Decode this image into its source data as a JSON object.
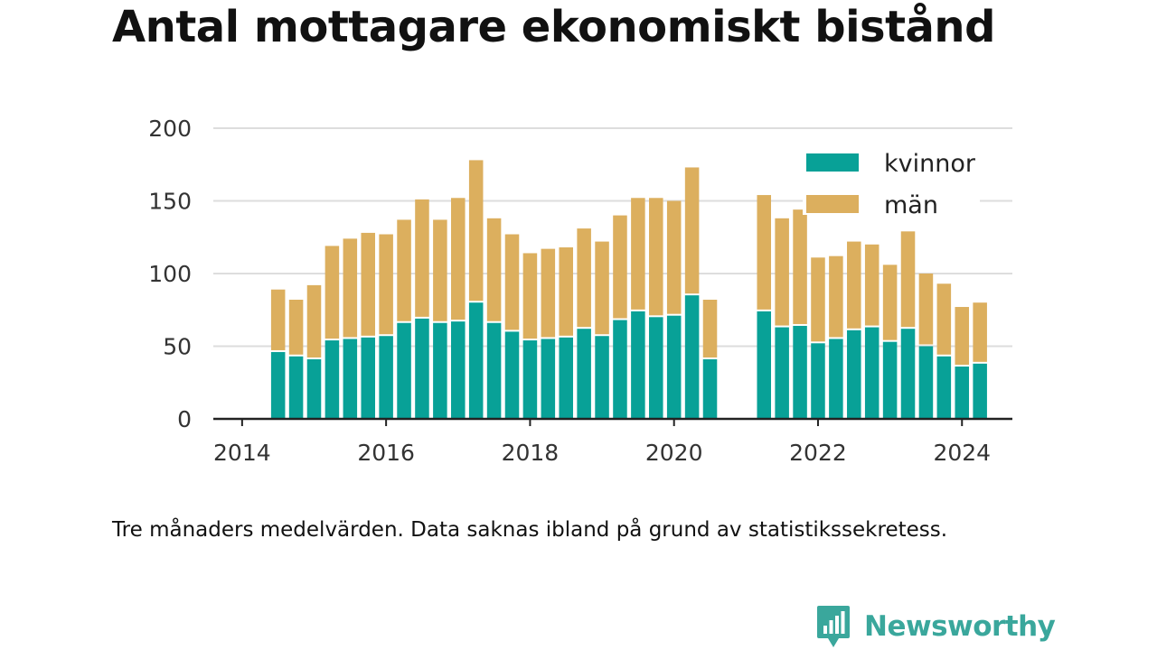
{
  "title": "Antal mottagare ekonomiskt bistånd",
  "caption": "Tre månaders medelvärden. Data saknas ibland på grund av statistikssekretess.",
  "brand": {
    "name": "Newsworthy",
    "icon": "newsworthy-logo-icon",
    "color": "#3aa79c"
  },
  "chart_data": {
    "type": "bar",
    "stacked": true,
    "x_unit": "decimal year (quarters)",
    "x": [
      2014.5,
      2014.75,
      2015.0,
      2015.25,
      2015.5,
      2015.75,
      2016.0,
      2016.25,
      2016.5,
      2016.75,
      2017.0,
      2017.25,
      2017.5,
      2017.75,
      2018.0,
      2018.25,
      2018.5,
      2018.75,
      2019.0,
      2019.25,
      2019.5,
      2019.75,
      2020.0,
      2020.25,
      2020.5,
      2020.75,
      2021.0,
      2021.25,
      2021.5,
      2021.75,
      2022.0,
      2022.25,
      2022.5,
      2022.75,
      2023.0,
      2023.25,
      2023.5,
      2023.75,
      2024.0,
      2024.25
    ],
    "series": [
      {
        "name": "kvinnor",
        "color": "#08a197",
        "values": [
          46,
          43,
          41,
          54,
          55,
          56,
          57,
          66,
          69,
          66,
          67,
          80,
          66,
          60,
          54,
          55,
          56,
          62,
          57,
          68,
          74,
          70,
          71,
          85,
          41,
          null,
          null,
          74,
          63,
          64,
          52,
          55,
          61,
          63,
          53,
          62,
          50,
          43,
          36,
          38
        ]
      },
      {
        "name": "män",
        "color": "#dcaf5e",
        "values": [
          43,
          39,
          51,
          65,
          69,
          72,
          70,
          71,
          82,
          71,
          85,
          98,
          72,
          67,
          60,
          62,
          62,
          69,
          65,
          72,
          78,
          82,
          79,
          88,
          41,
          null,
          null,
          80,
          75,
          80,
          59,
          57,
          61,
          57,
          53,
          67,
          50,
          50,
          41,
          42
        ]
      }
    ],
    "ylim": [
      0,
      200
    ],
    "yticks": [
      "0",
      "50",
      "100",
      "150",
      "200"
    ],
    "xlim": [
      2013.6,
      2024.7
    ],
    "xticks": [
      {
        "value": 2014,
        "label": "2014"
      },
      {
        "value": 2016,
        "label": "2016"
      },
      {
        "value": 2018,
        "label": "2018"
      },
      {
        "value": 2020,
        "label": "2020"
      },
      {
        "value": 2022,
        "label": "2022"
      },
      {
        "value": 2024,
        "label": "2024"
      }
    ],
    "grid": true,
    "legend_position": "top-right"
  }
}
